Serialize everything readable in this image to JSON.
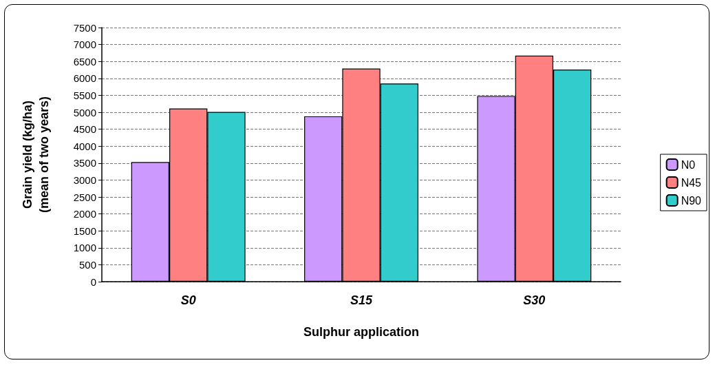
{
  "chart_data": {
    "type": "bar",
    "xlabel": "Sulphur application",
    "ylabel": "Grain yield (kg/ha)\n(mean of two years)",
    "categories": [
      "S0",
      "S15",
      "S30"
    ],
    "series": [
      {
        "name": "N0",
        "color": "#cc99ff",
        "values": [
          3530,
          4880,
          5480
        ]
      },
      {
        "name": "N45",
        "color": "#ff8080",
        "values": [
          5110,
          6290,
          6670
        ]
      },
      {
        "name": "N90",
        "color": "#33cccc",
        "values": [
          5010,
          5850,
          6260
        ]
      }
    ],
    "ylim": [
      0,
      7500
    ],
    "yticks": [
      0,
      500,
      1000,
      1500,
      2000,
      2500,
      3000,
      3500,
      4000,
      4500,
      5000,
      5500,
      6000,
      6500,
      7000,
      7500
    ],
    "grid": "y",
    "legend": "right"
  }
}
